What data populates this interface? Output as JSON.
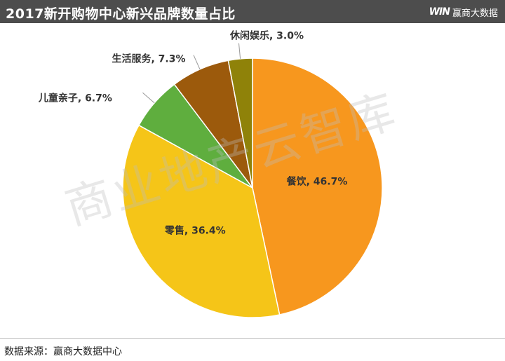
{
  "header": {
    "title": "2017新开购物中心新兴品牌数量占比",
    "brand_logo": "WIN",
    "brand_name": "赢商大数据"
  },
  "watermark": "商业地产云智库",
  "footer": {
    "source": "数据来源：赢商大数据中心"
  },
  "chart_data": {
    "type": "pie",
    "title": "2017新开购物中心新兴品牌数量占比",
    "slices": [
      {
        "label": "餐饮",
        "value": 46.7,
        "display": "餐饮, 46.7%",
        "color": "#f7971e"
      },
      {
        "label": "零售",
        "value": 36.4,
        "display": "零售, 36.4%",
        "color": "#f5c518"
      },
      {
        "label": "儿童亲子",
        "value": 6.7,
        "display": "儿童亲子, 6.7%",
        "color": "#5fae3e"
      },
      {
        "label": "生活服务",
        "value": 7.3,
        "display": "生活服务, 7.3%",
        "color": "#9c5a0c"
      },
      {
        "label": "休闲娱乐",
        "value": 3.0,
        "display": "休闲娱乐, 3.0%",
        "color": "#8f8209"
      }
    ],
    "start_angle": "12 o'clock",
    "direction": "clockwise",
    "legend": "none"
  }
}
